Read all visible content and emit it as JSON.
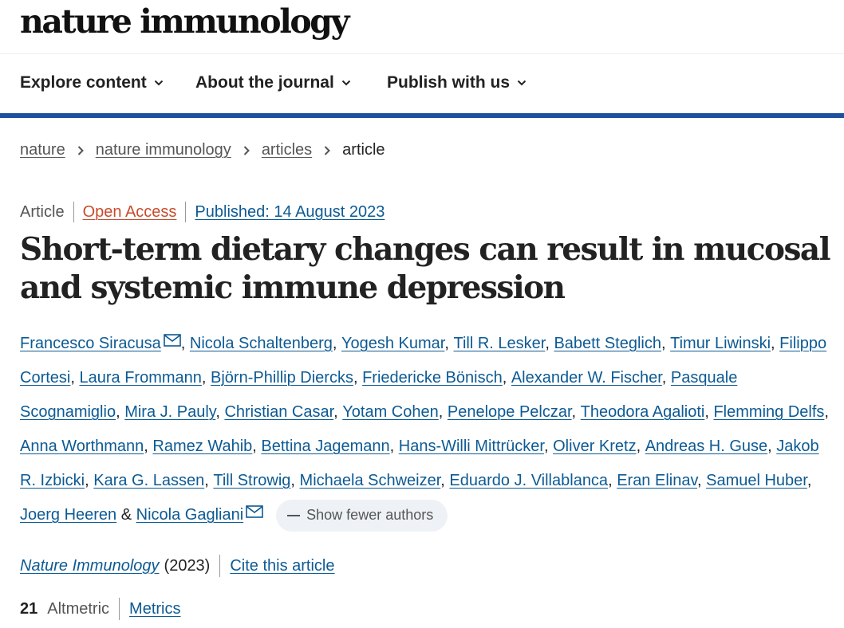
{
  "brand": {
    "logo_text": "nature immunology"
  },
  "nav": {
    "items": [
      {
        "label": "Explore content"
      },
      {
        "label": "About the journal"
      },
      {
        "label": "Publish with us"
      }
    ]
  },
  "breadcrumb": {
    "items": [
      {
        "label": "nature"
      },
      {
        "label": "nature immunology"
      },
      {
        "label": "articles"
      }
    ],
    "current": "article"
  },
  "article": {
    "type": "Article",
    "access": "Open Access",
    "published": "Published: 14 August 2023",
    "title": "Short-term dietary changes can result in mucosal and systemic immune depression",
    "authors": [
      "Francesco Siracusa",
      "Nicola Schaltenberg",
      "Yogesh Kumar",
      "Till R. Lesker",
      "Babett Steglich",
      "Timur Liwinski",
      "Filippo Cortesi",
      "Laura Frommann",
      "Björn-Phillip Diercks",
      "Friedericke Bönisch",
      "Alexander W. Fischer",
      "Pasquale Scognamiglio",
      "Mira J. Pauly",
      "Christian Casar",
      "Yotam Cohen",
      "Penelope Pelczar",
      "Theodora Agalioti",
      "Flemming Delfs",
      "Anna Worthmann",
      "Ramez Wahib",
      "Bettina Jagemann",
      "Hans-Willi Mittrücker",
      "Oliver Kretz",
      "Andreas H. Guse",
      "Jakob R. Izbicki",
      "Kara G. Lassen",
      "Till Strowig",
      "Michaela Schweizer",
      "Eduardo J. Villablanca",
      "Eran Elinav",
      "Samuel Huber",
      "Joerg Heeren",
      "Nicola Gagliani"
    ],
    "author_separator": ",",
    "last_author_joiner": "&",
    "show_fewer_label": "Show fewer authors",
    "journal": "Nature Immunology",
    "year": "(2023)",
    "cite_label": "Cite this article",
    "altmetric_score": "21",
    "altmetric_label": "Altmetric",
    "metrics_label": "Metrics"
  },
  "colors": {
    "link": "#0c5a94",
    "open_access": "#c74c2c",
    "nav_bar": "#1e50a0",
    "pill_bg": "#eef2f6"
  },
  "icons": {
    "nav_chevron": "chevron-down-icon",
    "crumb_separator": "chevron-right-icon",
    "corresponding_author": "mail-icon",
    "show_fewer": "minus-icon"
  }
}
